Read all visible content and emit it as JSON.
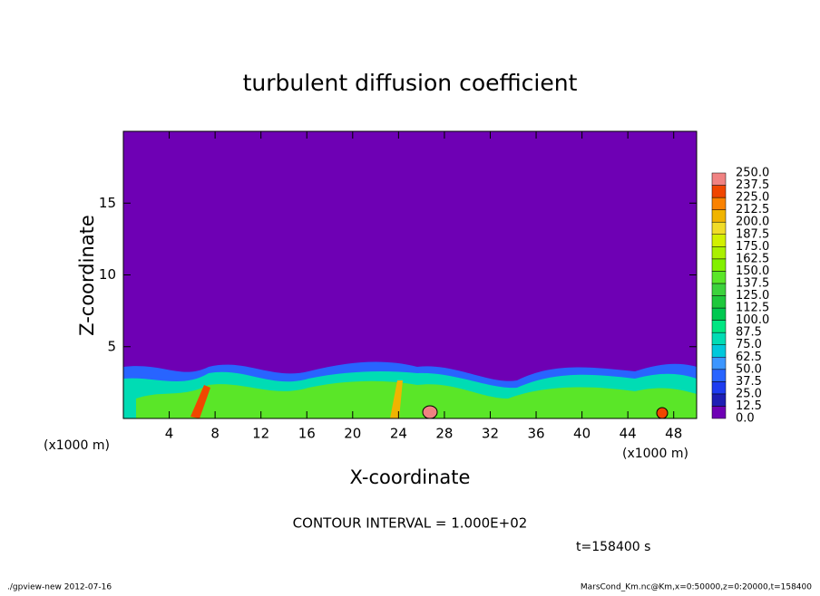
{
  "chart_data": {
    "type": "contour",
    "title": "turbulent diffusion coefficient",
    "xlabel": "X-coordinate",
    "ylabel": "Z-coordinate",
    "x_unit_label": "(x1000 m)",
    "xlim": [
      0,
      50
    ],
    "xticks": [
      4,
      8,
      12,
      16,
      20,
      24,
      28,
      32,
      36,
      40,
      44,
      48
    ],
    "ylim": [
      0,
      20
    ],
    "yticks": [
      5,
      10,
      15
    ],
    "background_color": "#6e00b4",
    "colorbar": {
      "levels": [
        {
          "value": 0,
          "label": "0.0"
        },
        {
          "value": 12.5,
          "label": "12.5"
        },
        {
          "value": 25,
          "label": "25.0"
        },
        {
          "value": 37.5,
          "label": "37.5"
        },
        {
          "value": 50,
          "label": "50.0"
        },
        {
          "value": 62.5,
          "label": "62.5"
        },
        {
          "value": 75,
          "label": "75.0"
        },
        {
          "value": 87.5,
          "label": "87.5"
        },
        {
          "value": 100,
          "label": "100.0"
        },
        {
          "value": 112.5,
          "label": "112.5"
        },
        {
          "value": 125,
          "label": "125.0"
        },
        {
          "value": 137.5,
          "label": "137.5"
        },
        {
          "value": 150,
          "label": "150.0"
        },
        {
          "value": 162.5,
          "label": "162.5"
        },
        {
          "value": 175,
          "label": "175.0"
        },
        {
          "value": 187.5,
          "label": "187.5"
        },
        {
          "value": 200,
          "label": "200.0"
        },
        {
          "value": 212.5,
          "label": "212.5"
        },
        {
          "value": 225,
          "label": "225.0"
        },
        {
          "value": 237.5,
          "label": "237.5"
        },
        {
          "value": 250,
          "label": "250.0"
        }
      ],
      "colors": [
        "#6e00b4",
        "#1e1eb4",
        "#1e3cf0",
        "#2864ff",
        "#3c96ff",
        "#00c8dc",
        "#00dcb4",
        "#00e682",
        "#00c850",
        "#1ec83c",
        "#3cd23c",
        "#5ae628",
        "#82f000",
        "#aaf000",
        "#d2f000",
        "#f0dc28",
        "#f0b400",
        "#fa8200",
        "#f04600",
        "#f08282"
      ]
    },
    "contour_interval": "CONTOUR INTERVAL = 1.000E+02",
    "time_label": "t=158400 s",
    "footer_left": "./gpview-new  2012-07-16",
    "footer_right": "MarsCond_Km.nc@Km,x=0:50000,z=0:20000,t=158400"
  }
}
